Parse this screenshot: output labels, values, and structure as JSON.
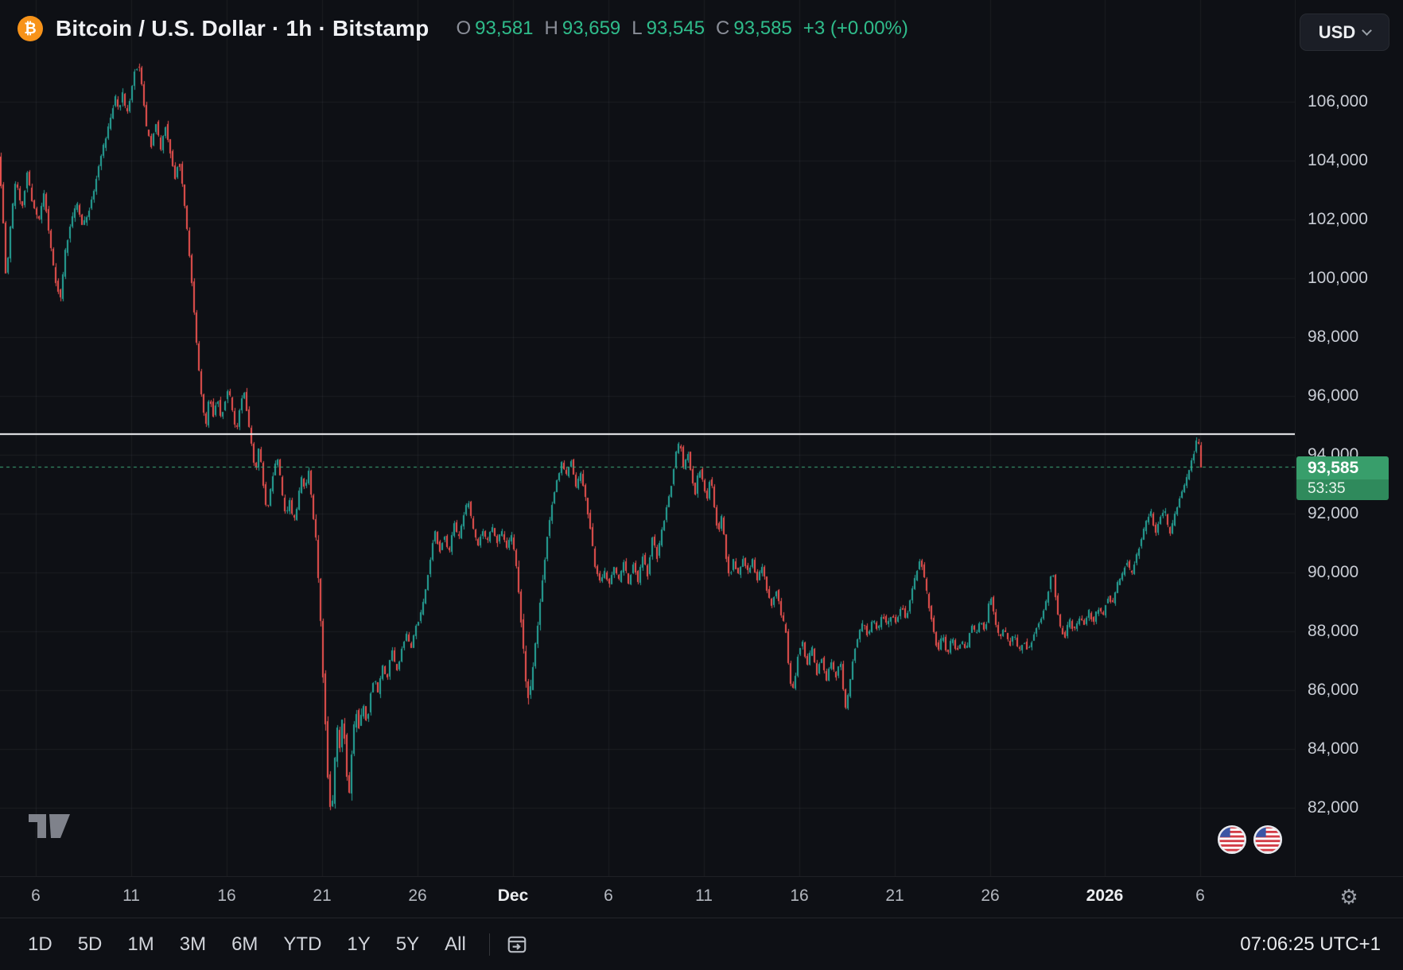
{
  "header": {
    "logo_glyph": "₿",
    "symbol_title": "Bitcoin / U.S. Dollar · 1h · Bitstamp",
    "ohlc": {
      "o_label": "O",
      "o": "93,581",
      "h_label": "H",
      "h": "93,659",
      "l_label": "L",
      "l": "93,545",
      "c_label": "C",
      "c": "93,585",
      "change": "+3 (+0.00%)"
    },
    "currency_button": "USD"
  },
  "price_scale": {
    "current_price": "93,585",
    "countdown": "53:35"
  },
  "toolbar": {
    "ranges": [
      "1D",
      "5D",
      "1M",
      "3M",
      "6M",
      "YTD",
      "1Y",
      "5Y",
      "All"
    ],
    "clock": "07:06:25 UTC+1"
  },
  "icons": {
    "gear": "⚙"
  },
  "chart_data": {
    "type": "candlestick",
    "title": "Bitcoin / U.S. Dollar",
    "interval": "1h",
    "exchange": "Bitstamp",
    "quote_currency": "USD",
    "ohlc_current": {
      "open": 93581,
      "high": 93659,
      "low": 93545,
      "close": 93585,
      "change": 3,
      "change_pct": "+0.00%"
    },
    "current_price": 93585,
    "hline_price": 94700,
    "ylim": [
      79666,
      109468
    ],
    "y_ticks": [
      82000,
      84000,
      86000,
      88000,
      90000,
      92000,
      94000,
      96000,
      98000,
      100000,
      102000,
      104000,
      106000
    ],
    "x_ticks": [
      {
        "d": 0,
        "label": "6"
      },
      {
        "d": 5,
        "label": "11"
      },
      {
        "d": 10,
        "label": "16"
      },
      {
        "d": 15,
        "label": "21"
      },
      {
        "d": 20,
        "label": "26"
      },
      {
        "d": 25,
        "label": "Dec",
        "major": true
      },
      {
        "d": 30,
        "label": "6"
      },
      {
        "d": 35,
        "label": "11"
      },
      {
        "d": 40,
        "label": "16"
      },
      {
        "d": 45,
        "label": "21"
      },
      {
        "d": 50,
        "label": "26"
      },
      {
        "d": 56,
        "label": "2026",
        "major": true
      },
      {
        "d": 61,
        "label": "6"
      }
    ],
    "colors": {
      "up": "#26a69a",
      "down": "#ef5350",
      "hline": "#f5f6f8",
      "current_line": "#3fae7c",
      "badge": "#389e6b"
    },
    "waypoints": [
      [
        -1.9,
        104200
      ],
      [
        -1.7,
        102600
      ],
      [
        -1.5,
        99800
      ],
      [
        -1.3,
        101600
      ],
      [
        -1.0,
        103400
      ],
      [
        -0.7,
        102300
      ],
      [
        -0.4,
        103600
      ],
      [
        -0.1,
        102500
      ],
      [
        0.2,
        101900
      ],
      [
        0.5,
        102900
      ],
      [
        0.8,
        101200
      ],
      [
        1.1,
        99900
      ],
      [
        1.35,
        99300
      ],
      [
        1.6,
        100900
      ],
      [
        1.9,
        101900
      ],
      [
        2.2,
        102600
      ],
      [
        2.5,
        101800
      ],
      [
        2.8,
        102200
      ],
      [
        3.1,
        103000
      ],
      [
        3.4,
        104000
      ],
      [
        3.7,
        104700
      ],
      [
        4.0,
        105500
      ],
      [
        4.2,
        106200
      ],
      [
        4.4,
        105700
      ],
      [
        4.6,
        106300
      ],
      [
        4.8,
        105500
      ],
      [
        5.0,
        106100
      ],
      [
        5.2,
        107000
      ],
      [
        5.45,
        107300
      ],
      [
        5.65,
        106300
      ],
      [
        5.85,
        105100
      ],
      [
        6.1,
        104500
      ],
      [
        6.35,
        105300
      ],
      [
        6.6,
        104400
      ],
      [
        6.85,
        105200
      ],
      [
        7.1,
        104300
      ],
      [
        7.35,
        103400
      ],
      [
        7.55,
        104100
      ],
      [
        7.75,
        103100
      ],
      [
        7.95,
        101800
      ],
      [
        8.15,
        100500
      ],
      [
        8.35,
        98800
      ],
      [
        8.55,
        97200
      ],
      [
        8.75,
        95900
      ],
      [
        8.95,
        94900
      ],
      [
        9.15,
        96100
      ],
      [
        9.35,
        95300
      ],
      [
        9.55,
        96000
      ],
      [
        9.75,
        95200
      ],
      [
        9.95,
        95800
      ],
      [
        10.15,
        96300
      ],
      [
        10.35,
        95500
      ],
      [
        10.55,
        94700
      ],
      [
        10.75,
        95600
      ],
      [
        10.95,
        96200
      ],
      [
        11.15,
        95300
      ],
      [
        11.35,
        94400
      ],
      [
        11.55,
        93400
      ],
      [
        11.75,
        94300
      ],
      [
        11.95,
        93100
      ],
      [
        12.15,
        92000
      ],
      [
        12.35,
        92800
      ],
      [
        12.55,
        93600
      ],
      [
        12.75,
        93900
      ],
      [
        12.95,
        92700
      ],
      [
        13.15,
        91900
      ],
      [
        13.35,
        92400
      ],
      [
        13.55,
        91700
      ],
      [
        13.75,
        92200
      ],
      [
        13.95,
        93300
      ],
      [
        14.15,
        92800
      ],
      [
        14.35,
        93400
      ],
      [
        14.55,
        92100
      ],
      [
        14.75,
        90900
      ],
      [
        14.95,
        88600
      ],
      [
        15.1,
        86500
      ],
      [
        15.25,
        84500
      ],
      [
        15.4,
        82400
      ],
      [
        15.55,
        81600
      ],
      [
        15.7,
        83400
      ],
      [
        15.85,
        84700
      ],
      [
        16.0,
        84000
      ],
      [
        16.15,
        85300
      ],
      [
        16.3,
        83600
      ],
      [
        16.45,
        82300
      ],
      [
        16.6,
        83800
      ],
      [
        16.8,
        85400
      ],
      [
        17.0,
        84700
      ],
      [
        17.2,
        85500
      ],
      [
        17.4,
        84800
      ],
      [
        17.6,
        85900
      ],
      [
        17.8,
        86400
      ],
      [
        18.0,
        85800
      ],
      [
        18.2,
        86900
      ],
      [
        18.45,
        86300
      ],
      [
        18.7,
        87400
      ],
      [
        18.95,
        86600
      ],
      [
        19.2,
        87300
      ],
      [
        19.45,
        87900
      ],
      [
        19.7,
        87400
      ],
      [
        19.95,
        88100
      ],
      [
        20.2,
        88500
      ],
      [
        20.45,
        89300
      ],
      [
        20.7,
        90300
      ],
      [
        20.95,
        91500
      ],
      [
        21.2,
        90700
      ],
      [
        21.45,
        91300
      ],
      [
        21.7,
        90600
      ],
      [
        21.95,
        91700
      ],
      [
        22.2,
        91100
      ],
      [
        22.45,
        91900
      ],
      [
        22.7,
        92500
      ],
      [
        22.95,
        91500
      ],
      [
        23.2,
        90900
      ],
      [
        23.45,
        91500
      ],
      [
        23.7,
        91000
      ],
      [
        23.95,
        91600
      ],
      [
        24.2,
        91000
      ],
      [
        24.45,
        91400
      ],
      [
        24.7,
        90800
      ],
      [
        24.95,
        91300
      ],
      [
        25.2,
        90400
      ],
      [
        25.45,
        88600
      ],
      [
        25.7,
        86400
      ],
      [
        25.9,
        85600
      ],
      [
        26.1,
        86800
      ],
      [
        26.3,
        88000
      ],
      [
        26.5,
        89200
      ],
      [
        26.7,
        90300
      ],
      [
        26.9,
        91500
      ],
      [
        27.1,
        92300
      ],
      [
        27.35,
        93100
      ],
      [
        27.6,
        93700
      ],
      [
        27.85,
        93300
      ],
      [
        28.1,
        93800
      ],
      [
        28.35,
        92900
      ],
      [
        28.6,
        93400
      ],
      [
        28.85,
        92500
      ],
      [
        29.1,
        91500
      ],
      [
        29.35,
        90200
      ],
      [
        29.6,
        89700
      ],
      [
        29.85,
        90000
      ],
      [
        30.1,
        89600
      ],
      [
        30.35,
        90200
      ],
      [
        30.6,
        89700
      ],
      [
        30.85,
        90400
      ],
      [
        31.1,
        89600
      ],
      [
        31.35,
        90300
      ],
      [
        31.6,
        89700
      ],
      [
        31.85,
        90600
      ],
      [
        32.1,
        89900
      ],
      [
        32.35,
        91200
      ],
      [
        32.6,
        90500
      ],
      [
        32.85,
        91400
      ],
      [
        33.1,
        92200
      ],
      [
        33.35,
        93000
      ],
      [
        33.6,
        94100
      ],
      [
        33.8,
        94500
      ],
      [
        34.0,
        93400
      ],
      [
        34.2,
        94200
      ],
      [
        34.4,
        93300
      ],
      [
        34.6,
        92700
      ],
      [
        34.8,
        93600
      ],
      [
        35.0,
        93100
      ],
      [
        35.2,
        92400
      ],
      [
        35.4,
        93400
      ],
      [
        35.6,
        92200
      ],
      [
        35.8,
        91300
      ],
      [
        36.0,
        92000
      ],
      [
        36.2,
        90600
      ],
      [
        36.4,
        89800
      ],
      [
        36.6,
        90400
      ],
      [
        36.85,
        89900
      ],
      [
        37.1,
        90500
      ],
      [
        37.35,
        90000
      ],
      [
        37.6,
        90400
      ],
      [
        37.85,
        89700
      ],
      [
        38.1,
        90200
      ],
      [
        38.35,
        89400
      ],
      [
        38.6,
        88900
      ],
      [
        38.85,
        89400
      ],
      [
        39.1,
        88600
      ],
      [
        39.35,
        88000
      ],
      [
        39.55,
        86300
      ],
      [
        39.75,
        86000
      ],
      [
        39.95,
        87100
      ],
      [
        40.2,
        87700
      ],
      [
        40.45,
        86800
      ],
      [
        40.7,
        87500
      ],
      [
        40.95,
        86500
      ],
      [
        41.2,
        87200
      ],
      [
        41.45,
        86300
      ],
      [
        41.7,
        87000
      ],
      [
        41.95,
        86400
      ],
      [
        42.2,
        87100
      ],
      [
        42.45,
        85300
      ],
      [
        42.65,
        86000
      ],
      [
        42.9,
        87200
      ],
      [
        43.15,
        87900
      ],
      [
        43.4,
        88300
      ],
      [
        43.65,
        87800
      ],
      [
        43.9,
        88400
      ],
      [
        44.15,
        88000
      ],
      [
        44.4,
        88600
      ],
      [
        44.65,
        88200
      ],
      [
        44.9,
        88600
      ],
      [
        45.15,
        88300
      ],
      [
        45.4,
        88900
      ],
      [
        45.65,
        88400
      ],
      [
        45.9,
        89200
      ],
      [
        46.15,
        89900
      ],
      [
        46.4,
        90500
      ],
      [
        46.6,
        89800
      ],
      [
        46.8,
        89000
      ],
      [
        47.05,
        88200
      ],
      [
        47.3,
        87300
      ],
      [
        47.55,
        87900
      ],
      [
        47.8,
        87200
      ],
      [
        48.05,
        87800
      ],
      [
        48.3,
        87300
      ],
      [
        48.55,
        87700
      ],
      [
        48.8,
        87300
      ],
      [
        49.05,
        88200
      ],
      [
        49.3,
        87900
      ],
      [
        49.55,
        88400
      ],
      [
        49.8,
        88000
      ],
      [
        50.05,
        89300
      ],
      [
        50.3,
        88400
      ],
      [
        50.55,
        87700
      ],
      [
        50.8,
        88100
      ],
      [
        51.05,
        87500
      ],
      [
        51.3,
        87900
      ],
      [
        51.55,
        87300
      ],
      [
        51.8,
        87700
      ],
      [
        52.05,
        87300
      ],
      [
        52.3,
        87800
      ],
      [
        52.55,
        88200
      ],
      [
        52.8,
        88600
      ],
      [
        53.05,
        89200
      ],
      [
        53.3,
        90200
      ],
      [
        53.5,
        89000
      ],
      [
        53.7,
        88200
      ],
      [
        53.95,
        87800
      ],
      [
        54.2,
        88400
      ],
      [
        54.45,
        88000
      ],
      [
        54.7,
        88500
      ],
      [
        54.95,
        88200
      ],
      [
        55.2,
        88700
      ],
      [
        55.45,
        88300
      ],
      [
        55.7,
        88800
      ],
      [
        55.95,
        88500
      ],
      [
        56.2,
        89200
      ],
      [
        56.45,
        88900
      ],
      [
        56.7,
        89600
      ],
      [
        56.95,
        89900
      ],
      [
        57.2,
        90400
      ],
      [
        57.45,
        89900
      ],
      [
        57.7,
        90500
      ],
      [
        57.95,
        91100
      ],
      [
        58.2,
        91700
      ],
      [
        58.45,
        92100
      ],
      [
        58.7,
        91300
      ],
      [
        58.95,
        91900
      ],
      [
        59.2,
        92100
      ],
      [
        59.45,
        91200
      ],
      [
        59.7,
        91900
      ],
      [
        59.95,
        92500
      ],
      [
        60.2,
        92900
      ],
      [
        60.45,
        93400
      ],
      [
        60.7,
        94000
      ],
      [
        60.9,
        94600
      ],
      [
        61.05,
        94100
      ],
      [
        61.2,
        93585
      ]
    ]
  }
}
